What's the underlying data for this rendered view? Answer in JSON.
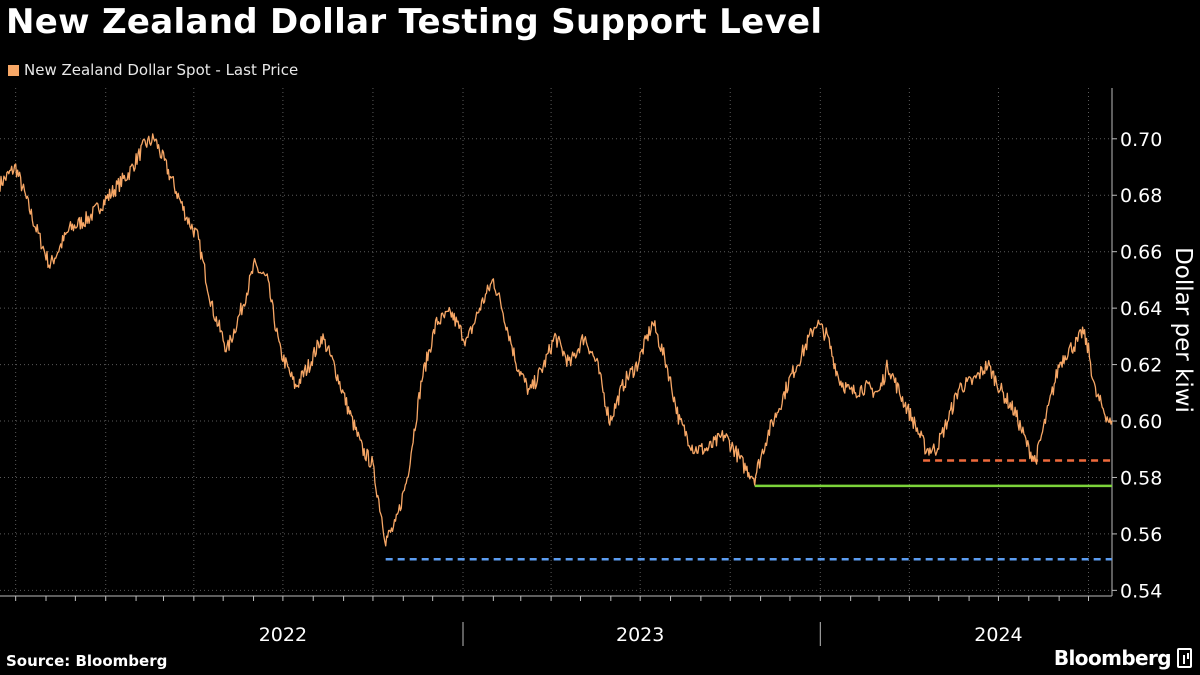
{
  "page": {
    "title": "New Zealand Dollar Testing Support Level",
    "source": "Source: Bloomberg",
    "brand": "Bloomberg",
    "brand_icon": "bloomberg-terminal-icon"
  },
  "colors": {
    "background": "#000000",
    "grid": "#5a5a5a",
    "series": "#f7a766",
    "support_low": "#5b9cf0",
    "support_mid": "#7cd33a",
    "support_recent": "#f06a3c",
    "text": "#ffffff"
  },
  "chart_data": {
    "type": "line",
    "title": "New Zealand Dollar Testing Support Level",
    "ylabel": "Dollar per kiwi",
    "xlabel": "",
    "ylim": [
      0.538,
      0.718
    ],
    "xlim": [
      "2021-09-15",
      "2024-10-25"
    ],
    "grid": true,
    "legend_position": "top-left",
    "yticks": [
      0.54,
      0.56,
      0.58,
      0.6,
      0.62,
      0.64,
      0.66,
      0.68,
      0.7
    ],
    "ytick_labels": [
      "0.54",
      "0.56",
      "0.58",
      "0.60",
      "0.62",
      "0.64",
      "0.66",
      "0.68",
      "0.70"
    ],
    "year_labels": [
      {
        "label": "2022",
        "date": "2022-07-01"
      },
      {
        "label": "2023",
        "date": "2023-07-01"
      },
      {
        "label": "2024",
        "date": "2024-07-01"
      }
    ],
    "year_boundaries": [
      "2023-01-01",
      "2024-01-01"
    ],
    "series": [
      {
        "name": "New Zealand Dollar Spot - Last Price",
        "points": [
          [
            "2021-09-15",
            0.684
          ],
          [
            "2021-10-01",
            0.69
          ],
          [
            "2021-10-20",
            0.67
          ],
          [
            "2021-11-05",
            0.655
          ],
          [
            "2021-11-25",
            0.668
          ],
          [
            "2021-12-15",
            0.672
          ],
          [
            "2022-01-05",
            0.68
          ],
          [
            "2022-01-25",
            0.688
          ],
          [
            "2022-02-10",
            0.698
          ],
          [
            "2022-02-20",
            0.7
          ],
          [
            "2022-03-10",
            0.685
          ],
          [
            "2022-03-25",
            0.672
          ],
          [
            "2022-04-05",
            0.665
          ],
          [
            "2022-04-20",
            0.64
          ],
          [
            "2022-05-05",
            0.625
          ],
          [
            "2022-05-20",
            0.64
          ],
          [
            "2022-06-02",
            0.655
          ],
          [
            "2022-06-15",
            0.65
          ],
          [
            "2022-06-28",
            0.625
          ],
          [
            "2022-07-14",
            0.612
          ],
          [
            "2022-07-28",
            0.62
          ],
          [
            "2022-08-10",
            0.63
          ],
          [
            "2022-08-22",
            0.62
          ],
          [
            "2022-09-05",
            0.605
          ],
          [
            "2022-09-20",
            0.59
          ],
          [
            "2022-09-30",
            0.585
          ],
          [
            "2022-10-08",
            0.57
          ],
          [
            "2022-10-14",
            0.558
          ],
          [
            "2022-10-24",
            0.563
          ],
          [
            "2022-11-05",
            0.58
          ],
          [
            "2022-11-20",
            0.615
          ],
          [
            "2022-12-05",
            0.635
          ],
          [
            "2022-12-20",
            0.638
          ],
          [
            "2023-01-05",
            0.628
          ],
          [
            "2023-01-18",
            0.64
          ],
          [
            "2023-02-01",
            0.65
          ],
          [
            "2023-02-10",
            0.64
          ],
          [
            "2023-02-25",
            0.62
          ],
          [
            "2023-03-10",
            0.61
          ],
          [
            "2023-03-25",
            0.62
          ],
          [
            "2023-04-05",
            0.63
          ],
          [
            "2023-04-20",
            0.62
          ],
          [
            "2023-05-05",
            0.63
          ],
          [
            "2023-05-18",
            0.62
          ],
          [
            "2023-05-31",
            0.6
          ],
          [
            "2023-06-15",
            0.614
          ],
          [
            "2023-06-28",
            0.62
          ],
          [
            "2023-07-14",
            0.635
          ],
          [
            "2023-07-28",
            0.62
          ],
          [
            "2023-08-10",
            0.6
          ],
          [
            "2023-08-25",
            0.59
          ],
          [
            "2023-09-08",
            0.59
          ],
          [
            "2023-09-25",
            0.595
          ],
          [
            "2023-10-05",
            0.59
          ],
          [
            "2023-10-15",
            0.584
          ],
          [
            "2023-10-26",
            0.58
          ],
          [
            "2023-11-08",
            0.595
          ],
          [
            "2023-11-20",
            0.605
          ],
          [
            "2023-12-01",
            0.615
          ],
          [
            "2023-12-15",
            0.625
          ],
          [
            "2023-12-28",
            0.635
          ],
          [
            "2024-01-08",
            0.63
          ],
          [
            "2024-01-20",
            0.615
          ],
          [
            "2024-02-01",
            0.61
          ],
          [
            "2024-02-15",
            0.612
          ],
          [
            "2024-03-01",
            0.61
          ],
          [
            "2024-03-10",
            0.62
          ],
          [
            "2024-03-22",
            0.61
          ],
          [
            "2024-04-05",
            0.6
          ],
          [
            "2024-04-18",
            0.59
          ],
          [
            "2024-04-28",
            0.59
          ],
          [
            "2024-05-10",
            0.6
          ],
          [
            "2024-05-22",
            0.612
          ],
          [
            "2024-06-05",
            0.614
          ],
          [
            "2024-06-20",
            0.62
          ],
          [
            "2024-07-05",
            0.61
          ],
          [
            "2024-07-18",
            0.603
          ],
          [
            "2024-08-01",
            0.59
          ],
          [
            "2024-08-08",
            0.586
          ],
          [
            "2024-08-20",
            0.603
          ],
          [
            "2024-09-01",
            0.62
          ],
          [
            "2024-09-10",
            0.625
          ],
          [
            "2024-09-20",
            0.628
          ],
          [
            "2024-09-25",
            0.632
          ],
          [
            "2024-10-01",
            0.625
          ],
          [
            "2024-10-08",
            0.61
          ],
          [
            "2024-10-25",
            0.598
          ],
          [
            "2024-11-05",
            0.592
          ],
          [
            "2024-11-10",
            0.585
          ],
          [
            "2024-11-12",
            0.587
          ]
        ]
      }
    ],
    "support_lines": [
      {
        "start": "2022-10-14",
        "end": "2024-12-31",
        "value": 0.551,
        "style": "dashed",
        "color": "#5b9cf0"
      },
      {
        "start": "2023-10-26",
        "end": "2024-12-31",
        "value": 0.577,
        "style": "solid",
        "color": "#7cd33a"
      },
      {
        "start": "2024-04-15",
        "end": "2024-12-31",
        "value": 0.586,
        "style": "dashed",
        "color": "#f06a3c"
      }
    ]
  }
}
